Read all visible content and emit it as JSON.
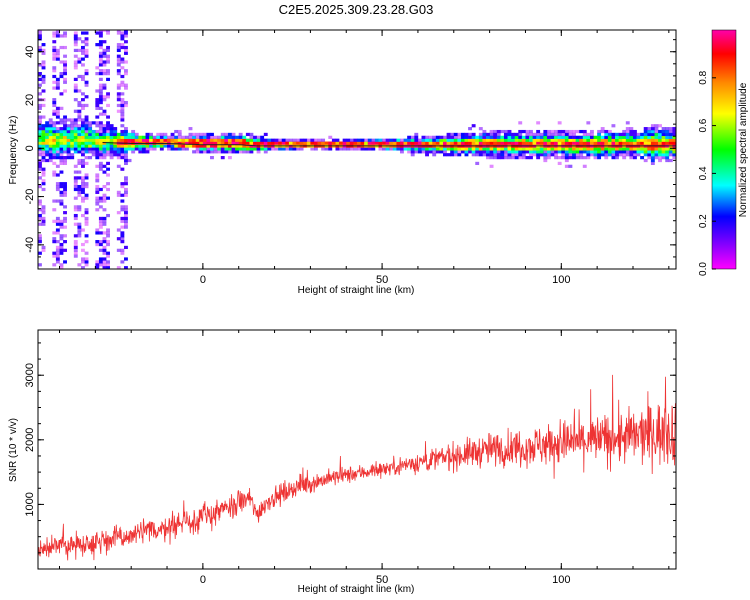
{
  "title": "C2E5.2025.309.23.28.G03",
  "chart_data": [
    {
      "type": "heatmap",
      "xlabel": "Height of straight line (km)",
      "ylabel": "Frequency (Hz)",
      "xlim": [
        -46,
        132
      ],
      "ylim": [
        -50,
        49
      ],
      "x_ticks": [
        0,
        50,
        100
      ],
      "y_ticks": [
        -40,
        -20,
        0,
        20,
        40
      ],
      "y_tick_labels": [
        "-40",
        "-20",
        "0",
        "20",
        "40"
      ],
      "colorbar": {
        "label": "Normalized spectral amplitude",
        "range": [
          0,
          1
        ],
        "ticks": [
          0.0,
          0.2,
          0.4,
          0.6,
          0.8
        ],
        "tick_labels": [
          "0.0",
          "0.2",
          "0.4",
          "0.6",
          "0.8"
        ],
        "colormap": [
          "#ff00ff",
          "#8800ff",
          "#0000ff",
          "#00ffff",
          "#00ff00",
          "#ffff00",
          "#ff8800",
          "#ff0000",
          "#ff00aa"
        ]
      },
      "signal_line": {
        "description_free": true,
        "x": [
          -46,
          -40,
          -30,
          -20,
          -10,
          0,
          10,
          15,
          20,
          40,
          60,
          80,
          100,
          110,
          120,
          125,
          132
        ],
        "y": [
          3,
          3,
          2.5,
          2,
          2,
          1.5,
          1.5,
          1,
          1,
          1,
          1,
          1,
          1,
          1,
          1,
          1,
          1
        ]
      },
      "bandwidth_hz": {
        "x": [
          -46,
          -30,
          -20,
          -10,
          0,
          10,
          20,
          40,
          60,
          70,
          80,
          100,
          110,
          120,
          125,
          132
        ],
        "halfwidth": [
          6,
          5,
          3,
          2,
          2.5,
          3,
          1.5,
          1.2,
          2,
          3,
          3.5,
          3.5,
          4,
          3.5,
          5,
          4
        ]
      },
      "noise_region": {
        "x_range": [
          -46,
          -22
        ],
        "y_range": [
          -50,
          49
        ]
      }
    },
    {
      "type": "line",
      "xlabel": "Height of straight line (km)",
      "ylabel": "SNR (10 * v/v)",
      "xlim": [
        -46,
        132
      ],
      "ylim": [
        0,
        3700
      ],
      "x_ticks": [
        0,
        50,
        100
      ],
      "y_ticks": [
        1000,
        2000,
        3000
      ],
      "color": "#ee3333",
      "trend": {
        "x": [
          -46,
          -40,
          -30,
          -20,
          -10,
          0,
          8,
          13,
          15,
          18,
          25,
          35,
          50,
          60,
          70,
          80,
          90,
          100,
          110,
          120,
          132
        ],
        "y": [
          300,
          350,
          420,
          520,
          650,
          800,
          950,
          1100,
          850,
          1050,
          1250,
          1400,
          1550,
          1650,
          1750,
          1850,
          1900,
          1950,
          2000,
          2050,
          2150
        ]
      },
      "noise_amplitude": {
        "x": [
          -46,
          0,
          20,
          50,
          80,
          100,
          120,
          132
        ],
        "y": [
          180,
          220,
          160,
          120,
          260,
          350,
          450,
          550
        ]
      }
    }
  ]
}
